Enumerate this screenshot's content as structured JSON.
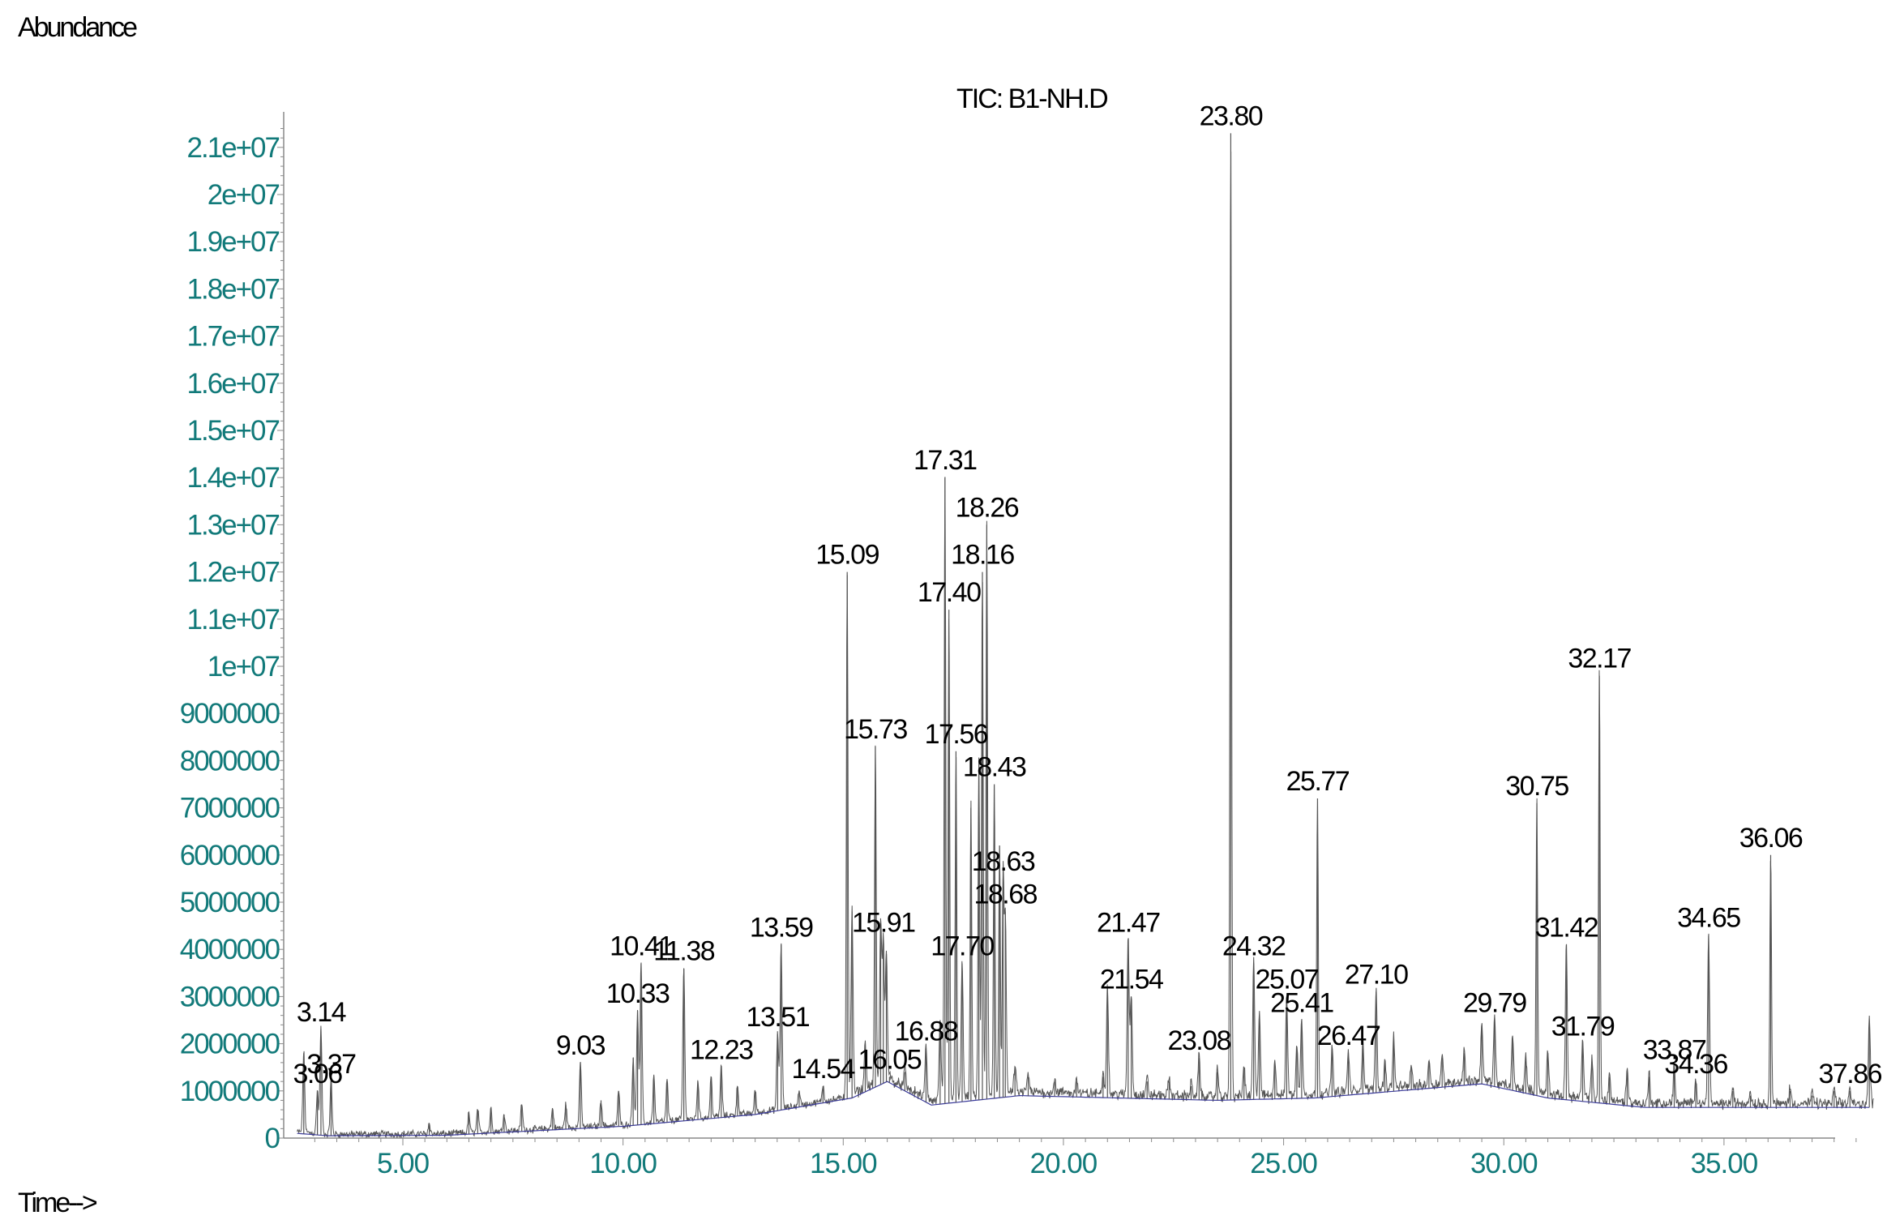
{
  "chart_data": {
    "type": "line",
    "title": "TIC: B1-NH.D",
    "ylabel": "Abundance",
    "xlabel": "Time-->",
    "xlim": [
      2.6,
      38.4
    ],
    "ylim": [
      0,
      21500000
    ],
    "y_ticks": [
      0,
      1000000,
      2000000,
      3000000,
      4000000,
      5000000,
      6000000,
      7000000,
      8000000,
      9000000,
      10000000,
      11000000,
      12000000,
      13000000,
      14000000,
      15000000,
      16000000,
      17000000,
      18000000,
      19000000,
      20000000,
      21000000
    ],
    "y_tick_labels": [
      "0",
      "1000000",
      "2000000",
      "3000000",
      "4000000",
      "5000000",
      "6000000",
      "7000000",
      "8000000",
      "9000000",
      "1e+07",
      "1.1e+07",
      "1.2e+07",
      "1.3e+07",
      "1.4e+07",
      "1.5e+07",
      "1.6e+07",
      "1.7e+07",
      "1.8e+07",
      "1.9e+07",
      "2e+07",
      "2.1e+07"
    ],
    "x_ticks": [
      5,
      10,
      15,
      20,
      25,
      30,
      35
    ],
    "x_tick_labels": [
      "5.00",
      "10.00",
      "15.00",
      "20.00",
      "25.00",
      "30.00",
      "35.00"
    ],
    "colors": {
      "trace": "#555555",
      "baseline": "#3a3a9a",
      "axis": "#8a8a8a",
      "tick_text": "#127a7a"
    },
    "baseline": [
      [
        2.6,
        100000
      ],
      [
        3.3,
        50000
      ],
      [
        6,
        60000
      ],
      [
        10,
        250000
      ],
      [
        13,
        500000
      ],
      [
        15.2,
        850000
      ],
      [
        16,
        1200000
      ],
      [
        17,
        700000
      ],
      [
        19,
        900000
      ],
      [
        23.5,
        800000
      ],
      [
        25.7,
        850000
      ],
      [
        29.5,
        1150000
      ],
      [
        31,
        850000
      ],
      [
        33.2,
        650000
      ],
      [
        38.4,
        650000
      ]
    ],
    "peaks": [
      {
        "rt": 2.75,
        "height": 1800000
      },
      {
        "rt": 3.06,
        "height": 1000000,
        "label": "3.06"
      },
      {
        "rt": 3.14,
        "height": 2300000,
        "label": "3.14"
      },
      {
        "rt": 3.37,
        "height": 1200000,
        "label": "3.37"
      },
      {
        "rt": 5.6,
        "height": 300000
      },
      {
        "rt": 6.5,
        "height": 500000
      },
      {
        "rt": 6.7,
        "height": 600000
      },
      {
        "rt": 7.0,
        "height": 600000
      },
      {
        "rt": 7.3,
        "height": 500000
      },
      {
        "rt": 7.7,
        "height": 700000
      },
      {
        "rt": 8.4,
        "height": 600000
      },
      {
        "rt": 8.7,
        "height": 700000
      },
      {
        "rt": 9.03,
        "height": 1600000,
        "label": "9.03"
      },
      {
        "rt": 9.5,
        "height": 800000
      },
      {
        "rt": 9.9,
        "height": 1000000
      },
      {
        "rt": 10.23,
        "height": 1700000
      },
      {
        "rt": 10.33,
        "height": 2700000,
        "label": "10.33"
      },
      {
        "rt": 10.41,
        "height": 3700000,
        "label": "10.41"
      },
      {
        "rt": 10.7,
        "height": 1300000
      },
      {
        "rt": 11.0,
        "height": 1200000
      },
      {
        "rt": 11.38,
        "height": 3600000,
        "label": "11.38"
      },
      {
        "rt": 11.7,
        "height": 1200000
      },
      {
        "rt": 12.0,
        "height": 1300000
      },
      {
        "rt": 12.23,
        "height": 1500000,
        "label": "12.23"
      },
      {
        "rt": 12.6,
        "height": 1100000
      },
      {
        "rt": 13.0,
        "height": 1000000
      },
      {
        "rt": 13.51,
        "height": 2200000,
        "label": "13.51"
      },
      {
        "rt": 13.59,
        "height": 4100000,
        "label": "13.59"
      },
      {
        "rt": 14.0,
        "height": 1000000
      },
      {
        "rt": 14.54,
        "height": 1100000,
        "label": "14.54"
      },
      {
        "rt": 15.09,
        "height": 12000000,
        "label": "15.09"
      },
      {
        "rt": 15.2,
        "height": 4800000
      },
      {
        "rt": 15.5,
        "height": 2000000
      },
      {
        "rt": 15.73,
        "height": 8300000,
        "label": "15.73"
      },
      {
        "rt": 15.85,
        "height": 4500000
      },
      {
        "rt": 15.91,
        "height": 4200000,
        "label": "15.91"
      },
      {
        "rt": 15.98,
        "height": 3900000
      },
      {
        "rt": 16.05,
        "height": 1300000,
        "label": "16.05"
      },
      {
        "rt": 16.4,
        "height": 1400000
      },
      {
        "rt": 16.88,
        "height": 1900000,
        "label": "16.88"
      },
      {
        "rt": 17.2,
        "height": 2500000
      },
      {
        "rt": 17.31,
        "height": 14000000,
        "label": "17.31"
      },
      {
        "rt": 17.4,
        "height": 11200000,
        "label": "17.40"
      },
      {
        "rt": 17.56,
        "height": 8200000,
        "label": "17.56"
      },
      {
        "rt": 17.7,
        "height": 3700000,
        "label": "17.70"
      },
      {
        "rt": 17.9,
        "height": 7000000
      },
      {
        "rt": 18.08,
        "height": 8000000
      },
      {
        "rt": 18.16,
        "height": 12000000,
        "label": "18.16"
      },
      {
        "rt": 18.26,
        "height": 13000000,
        "label": "18.26"
      },
      {
        "rt": 18.43,
        "height": 7500000,
        "label": "18.43"
      },
      {
        "rt": 18.55,
        "height": 6200000
      },
      {
        "rt": 18.63,
        "height": 5500000,
        "label": "18.63"
      },
      {
        "rt": 18.68,
        "height": 4800000,
        "label": "18.68"
      },
      {
        "rt": 18.9,
        "height": 1500000
      },
      {
        "rt": 19.2,
        "height": 1300000
      },
      {
        "rt": 19.8,
        "height": 1200000
      },
      {
        "rt": 20.3,
        "height": 1200000
      },
      {
        "rt": 20.9,
        "height": 1300000
      },
      {
        "rt": 21.0,
        "height": 3200000
      },
      {
        "rt": 21.47,
        "height": 4200000,
        "label": "21.47"
      },
      {
        "rt": 21.54,
        "height": 3000000,
        "label": "21.54"
      },
      {
        "rt": 21.9,
        "height": 1200000
      },
      {
        "rt": 22.4,
        "height": 1200000
      },
      {
        "rt": 22.9,
        "height": 1100000
      },
      {
        "rt": 23.08,
        "height": 1700000,
        "label": "23.08"
      },
      {
        "rt": 23.5,
        "height": 1400000
      },
      {
        "rt": 23.8,
        "height": 21300000,
        "label": "23.80"
      },
      {
        "rt": 24.1,
        "height": 1500000
      },
      {
        "rt": 24.32,
        "height": 3700000,
        "label": "24.32"
      },
      {
        "rt": 24.45,
        "height": 2600000
      },
      {
        "rt": 24.8,
        "height": 1600000
      },
      {
        "rt": 25.07,
        "height": 3000000,
        "label": "25.07"
      },
      {
        "rt": 25.3,
        "height": 1900000
      },
      {
        "rt": 25.41,
        "height": 2500000,
        "label": "25.41"
      },
      {
        "rt": 25.77,
        "height": 7200000,
        "label": "25.77"
      },
      {
        "rt": 26.1,
        "height": 1900000
      },
      {
        "rt": 26.47,
        "height": 1800000,
        "label": "26.47"
      },
      {
        "rt": 26.8,
        "height": 2000000
      },
      {
        "rt": 27.1,
        "height": 3100000,
        "label": "27.10"
      },
      {
        "rt": 27.3,
        "height": 1600000
      },
      {
        "rt": 27.5,
        "height": 2100000
      },
      {
        "rt": 27.9,
        "height": 1500000
      },
      {
        "rt": 28.3,
        "height": 1600000
      },
      {
        "rt": 28.6,
        "height": 1700000
      },
      {
        "rt": 29.1,
        "height": 1800000
      },
      {
        "rt": 29.5,
        "height": 2400000
      },
      {
        "rt": 29.79,
        "height": 2500000,
        "label": "29.79"
      },
      {
        "rt": 30.2,
        "height": 2100000
      },
      {
        "rt": 30.5,
        "height": 1700000
      },
      {
        "rt": 30.75,
        "height": 7100000,
        "label": "30.75"
      },
      {
        "rt": 31.0,
        "height": 1800000
      },
      {
        "rt": 31.42,
        "height": 4100000,
        "label": "31.42"
      },
      {
        "rt": 31.79,
        "height": 2000000,
        "label": "31.79"
      },
      {
        "rt": 32.0,
        "height": 1600000
      },
      {
        "rt": 32.17,
        "height": 9800000,
        "label": "32.17"
      },
      {
        "rt": 32.4,
        "height": 1300000
      },
      {
        "rt": 32.8,
        "height": 1400000
      },
      {
        "rt": 33.3,
        "height": 1300000
      },
      {
        "rt": 33.87,
        "height": 1500000,
        "label": "33.87"
      },
      {
        "rt": 34.36,
        "height": 1200000,
        "label": "34.36"
      },
      {
        "rt": 34.65,
        "height": 4300000,
        "label": "34.65"
      },
      {
        "rt": 35.2,
        "height": 1000000
      },
      {
        "rt": 35.6,
        "height": 900000
      },
      {
        "rt": 36.06,
        "height": 6000000,
        "label": "36.06"
      },
      {
        "rt": 36.5,
        "height": 1000000
      },
      {
        "rt": 37.0,
        "height": 900000
      },
      {
        "rt": 37.5,
        "height": 1000000
      },
      {
        "rt": 37.86,
        "height": 1000000,
        "label": "37.86"
      },
      {
        "rt": 38.3,
        "height": 2500000
      }
    ]
  }
}
